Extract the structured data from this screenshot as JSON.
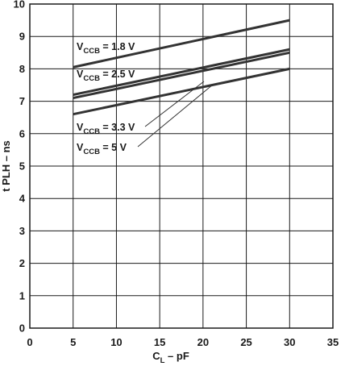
{
  "chart_data": {
    "type": "line",
    "xlabel": {
      "main": "C",
      "sub": "L",
      "rest": " – pF"
    },
    "ylabel": "t PLH – ns",
    "xlim": [
      0,
      35
    ],
    "ylim": [
      0,
      10
    ],
    "xticks": [
      0,
      5,
      10,
      15,
      20,
      25,
      30,
      35
    ],
    "yticks": [
      0,
      1,
      2,
      3,
      4,
      5,
      6,
      7,
      8,
      9,
      10
    ],
    "grid": true,
    "line_color": "#333333",
    "grid_color": "#1a1a1a",
    "series": [
      {
        "name": {
          "main": "V",
          "sub": "CCB",
          "rest": " = 1.8 V"
        },
        "x": [
          5,
          30
        ],
        "values": [
          8.05,
          9.5
        ]
      },
      {
        "name": {
          "main": "V",
          "sub": "CCB",
          "rest": " = 2.5 V"
        },
        "x": [
          5,
          30
        ],
        "values": [
          7.2,
          8.6
        ]
      },
      {
        "name": {
          "main": "V",
          "sub": "CCB",
          "rest": " = 3.3 V"
        },
        "x": [
          5,
          30
        ],
        "values": [
          7.1,
          8.5
        ]
      },
      {
        "name": {
          "main": "V",
          "sub": "CCB",
          "rest": " = 5 V"
        },
        "x": [
          5,
          30
        ],
        "values": [
          6.6,
          8.0
        ]
      }
    ]
  }
}
